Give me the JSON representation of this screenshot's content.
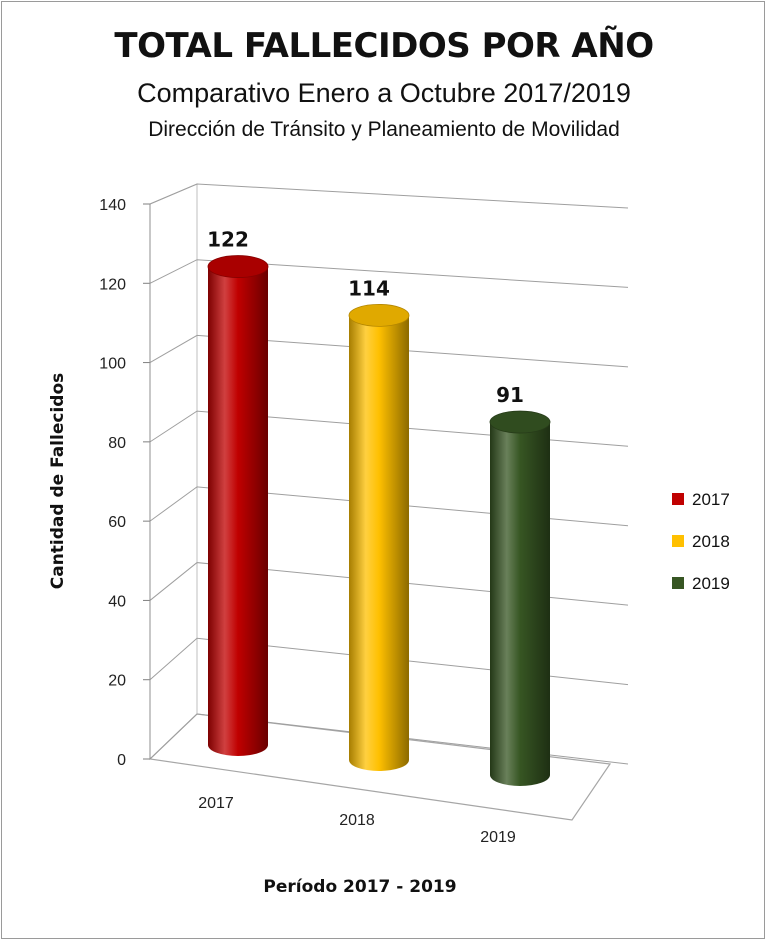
{
  "chart_data": {
    "type": "bar",
    "style": "3d-cylinder",
    "title": "TOTAL FALLECIDOS POR AÑO",
    "subtitle": "Comparativo Enero a Octubre 2017/2019",
    "subtitle2": "Dirección de Tránsito y Planeamiento de Movilidad",
    "xlabel": "Período 2017 - 2019",
    "ylabel": "Cantidad de Fallecidos",
    "categories": [
      "2017",
      "2018",
      "2019"
    ],
    "values": [
      122,
      114,
      91
    ],
    "data_labels": [
      "122",
      "114",
      "91"
    ],
    "colors": [
      "#c00000",
      "#ffc000",
      "#375623"
    ],
    "ylim": [
      0,
      140
    ],
    "yticks": [
      0,
      20,
      40,
      60,
      80,
      100,
      120,
      140
    ],
    "grid": true,
    "legend": {
      "placement": "right",
      "entries": [
        {
          "label": "2017",
          "color": "#c00000"
        },
        {
          "label": "2018",
          "color": "#ffc000"
        },
        {
          "label": "2019",
          "color": "#375623"
        }
      ]
    }
  }
}
